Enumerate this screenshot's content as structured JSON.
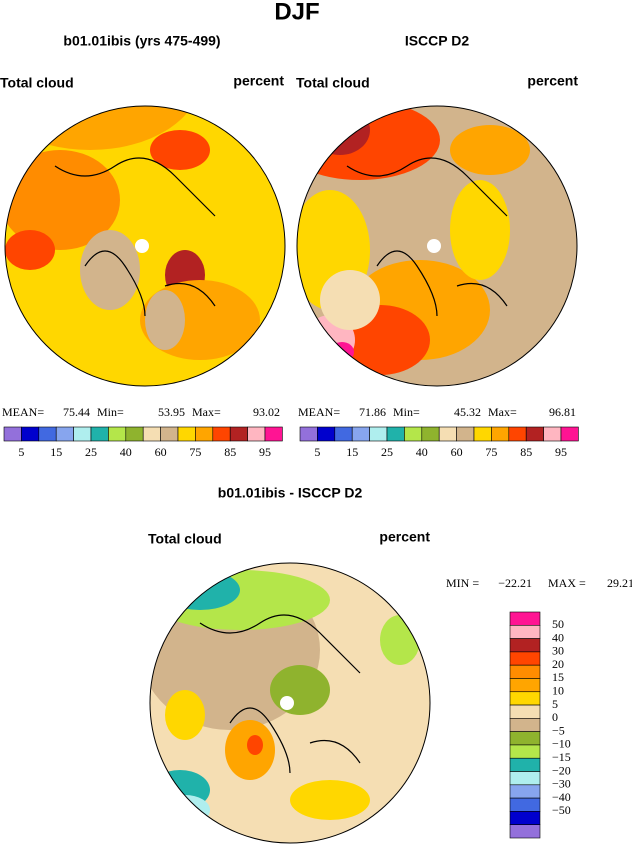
{
  "title": "DJF",
  "panels": [
    {
      "subtitle": "b01.01ibis (yrs 475-499)",
      "left_label": "Total cloud",
      "right_label": "percent",
      "stats": [
        {
          "label": "MEAN=",
          "value": 75.44
        },
        {
          "label": "Min=",
          "value": 53.95
        },
        {
          "label": "Max=",
          "value": 93.02
        }
      ]
    },
    {
      "subtitle": "ISCCP D2",
      "left_label": "Total cloud",
      "right_label": "percent",
      "stats": [
        {
          "label": "MEAN=",
          "value": 71.86
        },
        {
          "label": "Min=",
          "value": 45.32
        },
        {
          "label": "Max=",
          "value": 96.81
        }
      ]
    },
    {
      "subtitle": "b01.01ibis - ISCCP D2",
      "left_label": "Total cloud",
      "right_label": "percent",
      "stats": [
        {
          "label": "MIN =",
          "value": "−22.21"
        },
        {
          "label": "MAX =",
          "value": 29.21
        }
      ]
    }
  ],
  "colorbar_top": {
    "colors": [
      "#9370db",
      "#0000cd",
      "#4169e1",
      "#87a5ee",
      "#afeeee",
      "#20b2aa",
      "#b4e64a",
      "#8fb32e",
      "#f5deb3",
      "#d2b48c",
      "#ffd700",
      "#ffa500",
      "#ff4500",
      "#b22222",
      "#ffb6c1",
      "#ff1493"
    ],
    "labels": [
      5,
      15,
      25,
      40,
      60,
      75,
      85,
      95
    ]
  },
  "colorbar_diff": {
    "colors": [
      "#ff1493",
      "#ffb6c1",
      "#b22222",
      "#ff4500",
      "#ff8c00",
      "#ffa500",
      "#ffd700",
      "#f5deb3",
      "#d2b48c",
      "#8fb32e",
      "#b4e64a",
      "#20b2aa",
      "#afeeee",
      "#87a5ee",
      "#4169e1",
      "#0000cd",
      "#9370db"
    ],
    "labels": [
      50,
      40,
      30,
      20,
      15,
      10,
      5,
      0,
      "−5",
      "−10",
      "−15",
      "−20",
      "−30",
      "−40",
      "−50"
    ]
  }
}
